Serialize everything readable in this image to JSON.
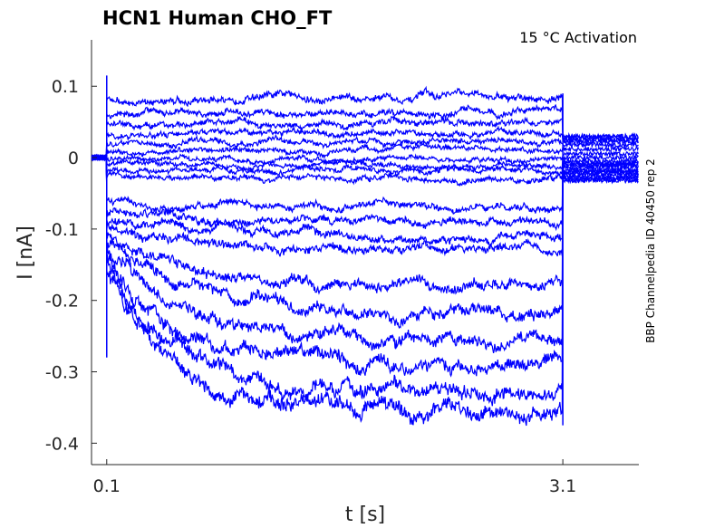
{
  "chart_data": {
    "type": "line",
    "title": "HCN1  Human  CHO_FT",
    "subtitle": "15 °C  Activation",
    "side_label": "BBP Channelpedia ID 40450 rep 2",
    "xlabel": "t [s]",
    "ylabel": "I [nA]",
    "xlim": [
      0.0,
      3.6
    ],
    "ylim": [
      -0.43,
      0.165
    ],
    "xticks": [
      0.1,
      3.1
    ],
    "xtick_labels": [
      "0.1",
      "3.1"
    ],
    "yticks": [
      0.1,
      0,
      -0.1,
      -0.2,
      -0.3,
      -0.4
    ],
    "ytick_labels": [
      "0.1",
      "0",
      "-0.1",
      "-0.2",
      "-0.3",
      "-0.4"
    ],
    "grid": false,
    "step_start": 0.1,
    "step_end": 3.1,
    "color": "#0000ff",
    "series": [
      {
        "initial": 0.08,
        "steady": 0.085,
        "tail": 0.03
      },
      {
        "initial": 0.06,
        "steady": 0.062,
        "tail": 0.028
      },
      {
        "initial": 0.045,
        "steady": 0.05,
        "tail": 0.025
      },
      {
        "initial": 0.032,
        "steady": 0.036,
        "tail": 0.022
      },
      {
        "initial": 0.018,
        "steady": 0.022,
        "tail": 0.018
      },
      {
        "initial": 0.008,
        "steady": 0.01,
        "tail": 0.012
      },
      {
        "initial": -0.002,
        "steady": -0.002,
        "tail": 0.005
      },
      {
        "initial": -0.01,
        "steady": -0.012,
        "tail": 0.0
      },
      {
        "initial": -0.018,
        "steady": -0.02,
        "tail": -0.005
      },
      {
        "initial": -0.025,
        "steady": -0.03,
        "tail": -0.008
      },
      {
        "initial": -0.06,
        "steady": -0.07,
        "tail": -0.01
      },
      {
        "initial": -0.075,
        "steady": -0.09,
        "tail": -0.012
      },
      {
        "initial": -0.09,
        "steady": -0.11,
        "tail": -0.015
      },
      {
        "initial": -0.1,
        "steady": -0.13,
        "tail": -0.018
      },
      {
        "initial": -0.11,
        "steady": -0.18,
        "tail": -0.02
      },
      {
        "initial": -0.12,
        "steady": -0.22,
        "tail": -0.022
      },
      {
        "initial": -0.13,
        "steady": -0.255,
        "tail": -0.025
      },
      {
        "initial": -0.14,
        "steady": -0.29,
        "tail": -0.028
      },
      {
        "initial": -0.15,
        "steady": -0.33,
        "tail": -0.03
      },
      {
        "initial": -0.16,
        "steady": -0.355,
        "tail": -0.032
      }
    ]
  }
}
